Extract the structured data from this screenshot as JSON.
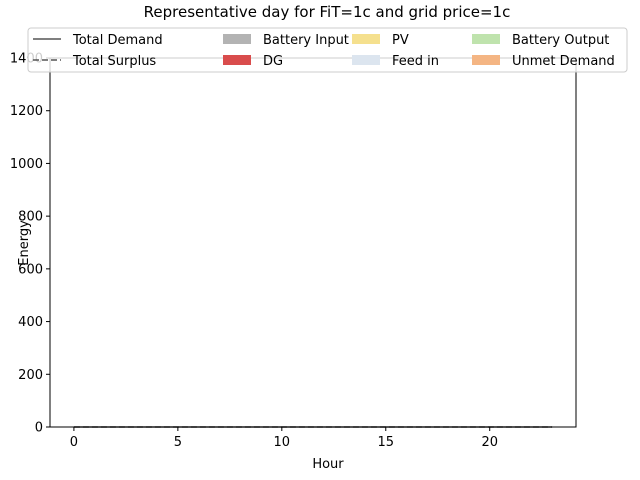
{
  "chart_data": {
    "type": "area",
    "title": "Representative day for FiT=1c and grid price=1c",
    "xlabel": "Hour",
    "ylabel": "Energy",
    "xlim": [
      -1.15,
      24.15
    ],
    "ylim": [
      0,
      1400
    ],
    "xticks": [
      0,
      5,
      10,
      15,
      20
    ],
    "yticks": [
      0,
      200,
      400,
      600,
      800,
      1000,
      1200,
      1400
    ],
    "grid": false,
    "legend_position": "top",
    "x": [
      0,
      1,
      2,
      3,
      4,
      5,
      6,
      7,
      8,
      9,
      10,
      11,
      12,
      13,
      14,
      15,
      16,
      17,
      18,
      19,
      20,
      21,
      22,
      23
    ],
    "series": [
      {
        "name": "Total Demand",
        "kind": "line",
        "style": "solid",
        "color": "#555555",
        "values": [
          0,
          0,
          0,
          0,
          0,
          0,
          0,
          0,
          0,
          0,
          0,
          0,
          0,
          0,
          0,
          0,
          0,
          0,
          0,
          0,
          0,
          0,
          0,
          0
        ]
      },
      {
        "name": "Total Surplus",
        "kind": "line",
        "style": "dashed",
        "color": "#555555",
        "values": [
          0,
          0,
          0,
          0,
          0,
          0,
          0,
          0,
          0,
          0,
          0,
          0,
          0,
          0,
          0,
          0,
          0,
          0,
          0,
          0,
          0,
          0,
          0,
          0
        ]
      },
      {
        "name": "Battery Input",
        "kind": "area",
        "color": "#b3b3b3",
        "values": [
          0,
          0,
          0,
          0,
          0,
          0,
          0,
          0,
          0,
          0,
          0,
          0,
          0,
          0,
          0,
          0,
          0,
          0,
          0,
          0,
          0,
          0,
          0,
          0
        ]
      },
      {
        "name": "DG",
        "kind": "area",
        "color": "#d94c4c",
        "values": [
          0,
          0,
          0,
          0,
          0,
          0,
          0,
          0,
          0,
          0,
          0,
          0,
          0,
          0,
          0,
          0,
          0,
          0,
          0,
          0,
          0,
          0,
          0,
          0
        ]
      },
      {
        "name": "PV",
        "kind": "area",
        "color": "#f5e08e",
        "values": [
          0,
          0,
          0,
          0,
          0,
          0,
          0,
          0,
          0,
          0,
          0,
          0,
          0,
          0,
          0,
          0,
          0,
          0,
          0,
          0,
          0,
          0,
          0,
          0
        ]
      },
      {
        "name": "Feed in",
        "kind": "area",
        "color": "#dce5ef",
        "values": [
          0,
          0,
          0,
          0,
          0,
          0,
          0,
          0,
          0,
          0,
          0,
          0,
          0,
          0,
          0,
          0,
          0,
          0,
          0,
          0,
          0,
          0,
          0,
          0
        ]
      },
      {
        "name": "Battery Output",
        "kind": "area",
        "color": "#bfe3ad",
        "values": [
          0,
          0,
          0,
          0,
          0,
          0,
          0,
          0,
          0,
          0,
          0,
          0,
          0,
          0,
          0,
          0,
          0,
          0,
          0,
          0,
          0,
          0,
          0,
          0
        ]
      },
      {
        "name": "Unmet Demand",
        "kind": "area",
        "color": "#f4b583",
        "values": [
          0,
          0,
          0,
          0,
          0,
          0,
          0,
          0,
          0,
          0,
          0,
          0,
          0,
          0,
          0,
          0,
          0,
          0,
          0,
          0,
          0,
          0,
          0,
          0
        ]
      }
    ]
  }
}
